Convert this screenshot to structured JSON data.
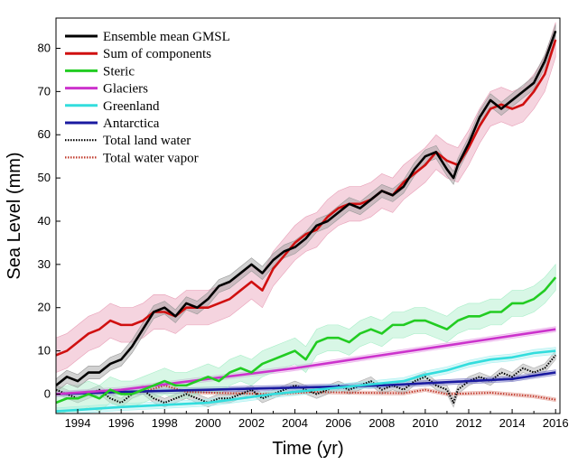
{
  "chart_data": {
    "type": "line",
    "title": "",
    "xlabel": "Time (yr)",
    "ylabel": "Sea Level (mm)",
    "xlim": [
      1993,
      2016.2
    ],
    "ylim": [
      -4.5,
      87
    ],
    "xticks": [
      1994,
      1996,
      1998,
      2000,
      2002,
      2004,
      2006,
      2008,
      2010,
      2012,
      2014,
      2016
    ],
    "yticks": [
      0,
      10,
      20,
      30,
      40,
      50,
      60,
      70,
      80
    ],
    "grid": false,
    "legend_position": "top-left",
    "series": [
      {
        "name": "Ensemble mean GMSL",
        "color": "#000000",
        "style": "solid",
        "band_color": "#999999",
        "band_halfwidth": 1.5,
        "x": [
          1993.0,
          1993.5,
          1994.0,
          1994.5,
          1995.0,
          1995.5,
          1996.0,
          1996.5,
          1997.0,
          1997.5,
          1998.0,
          1998.5,
          1999.0,
          1999.5,
          2000.0,
          2000.5,
          2001.0,
          2001.5,
          2002.0,
          2002.5,
          2003.0,
          2003.5,
          2004.0,
          2004.5,
          2005.0,
          2005.5,
          2006.0,
          2006.5,
          2007.0,
          2007.5,
          2008.0,
          2008.5,
          2009.0,
          2009.5,
          2010.0,
          2010.5,
          2011.0,
          2011.3,
          2011.5,
          2012.0,
          2012.5,
          2013.0,
          2013.5,
          2014.0,
          2014.5,
          2015.0,
          2015.5,
          2016.0
        ],
        "y": [
          2,
          4,
          3,
          5,
          5,
          7,
          8,
          11,
          15,
          19,
          20,
          18,
          21,
          20,
          22,
          25,
          26,
          28,
          30,
          28,
          31,
          33,
          34,
          36,
          39,
          40,
          42,
          44,
          43,
          45,
          47,
          46,
          48,
          52,
          55,
          56,
          52,
          50,
          53,
          58,
          64,
          68,
          66,
          68,
          70,
          72,
          77,
          84
        ]
      },
      {
        "name": "Sum of components",
        "color": "#d01010",
        "style": "solid",
        "band_color": "#e8a0b8",
        "band_halfwidth": 4,
        "x": [
          1993.0,
          1993.5,
          1994.0,
          1994.5,
          1995.0,
          1995.5,
          1996.0,
          1996.5,
          1997.0,
          1997.5,
          1998.0,
          1998.5,
          1999.0,
          1999.5,
          2000.0,
          2000.5,
          2001.0,
          2001.5,
          2002.0,
          2002.5,
          2003.0,
          2003.5,
          2004.0,
          2004.5,
          2005.0,
          2005.5,
          2006.0,
          2006.5,
          2007.0,
          2007.5,
          2008.0,
          2008.5,
          2009.0,
          2009.5,
          2010.0,
          2010.5,
          2011.0,
          2011.5,
          2012.0,
          2012.5,
          2013.0,
          2013.5,
          2014.0,
          2014.5,
          2015.0,
          2015.5,
          2016.0
        ],
        "y": [
          9,
          10,
          12,
          14,
          15,
          17,
          16,
          16,
          17,
          19,
          19,
          18,
          20,
          20,
          20,
          21,
          22,
          24,
          26,
          24,
          29,
          32,
          35,
          37,
          38,
          41,
          43,
          44,
          44,
          45,
          47,
          46,
          49,
          51,
          53,
          56,
          54,
          53,
          57,
          62,
          66,
          67,
          66,
          67,
          70,
          74,
          82
        ]
      },
      {
        "name": "Steric",
        "color": "#22cc22",
        "style": "solid",
        "band_color": "#a8eec8",
        "band_halfwidth": 3,
        "x": [
          1993.0,
          1993.5,
          1994.0,
          1994.5,
          1995.0,
          1995.5,
          1996.0,
          1996.5,
          1997.0,
          1997.5,
          1998.0,
          1998.5,
          1999.0,
          1999.5,
          2000.0,
          2000.5,
          2001.0,
          2001.5,
          2002.0,
          2002.5,
          2003.0,
          2003.5,
          2004.0,
          2004.5,
          2005.0,
          2005.5,
          2006.0,
          2006.5,
          2007.0,
          2007.5,
          2008.0,
          2008.5,
          2009.0,
          2009.5,
          2010.0,
          2010.5,
          2011.0,
          2011.5,
          2012.0,
          2012.5,
          2013.0,
          2013.5,
          2014.0,
          2014.5,
          2015.0,
          2015.5,
          2016.0
        ],
        "y": [
          -2,
          -1,
          -1,
          0,
          -1,
          1,
          0,
          0,
          1,
          2,
          3,
          2,
          2,
          3,
          4,
          3,
          5,
          6,
          5,
          7,
          8,
          9,
          10,
          8,
          12,
          13,
          13,
          12,
          14,
          15,
          14,
          16,
          16,
          17,
          17,
          16,
          15,
          17,
          18,
          18,
          19,
          19,
          21,
          21,
          22,
          24,
          27
        ]
      },
      {
        "name": "Glaciers",
        "color": "#cc33cc",
        "style": "solid",
        "band_color": "#e8a8e8",
        "band_halfwidth": 0.6,
        "x": [
          1993.0,
          1996.0,
          2000.0,
          2004.0,
          2008.0,
          2012.0,
          2016.0
        ],
        "y": [
          0,
          1,
          3.5,
          6,
          9,
          12,
          15
        ]
      },
      {
        "name": "Greenland",
        "color": "#33dddd",
        "style": "solid",
        "band_color": "#a8f0f0",
        "band_halfwidth": 0.8,
        "x": [
          1993.0,
          1996.0,
          2000.0,
          2003.0,
          2005.0,
          2007.0,
          2009.0,
          2010.0,
          2011.0,
          2012.0,
          2013.0,
          2014.0,
          2015.0,
          2016.0
        ],
        "y": [
          -4,
          -3,
          -2,
          0,
          1,
          2,
          3,
          4.5,
          5.5,
          7,
          8,
          8.5,
          9.5,
          10
        ]
      },
      {
        "name": "Antarctica",
        "color": "#1a1aa0",
        "style": "solid",
        "band_color": "#8888cc",
        "band_halfwidth": 0.6,
        "x": [
          1993.0,
          1996.0,
          2000.0,
          2004.0,
          2008.0,
          2012.0,
          2014.0,
          2016.0
        ],
        "y": [
          0,
          0.5,
          1,
          1.5,
          2,
          3,
          3.5,
          5
        ]
      },
      {
        "name": "Total land water",
        "color": "#000000",
        "style": "dotted",
        "band_color": "#aaaaaa",
        "band_halfwidth": 1,
        "x": [
          1993.0,
          1993.5,
          1994.0,
          1994.5,
          1995.0,
          1995.5,
          1996.0,
          1996.5,
          1997.0,
          1997.5,
          1998.0,
          1998.5,
          1999.0,
          1999.5,
          2000.0,
          2000.5,
          2001.0,
          2001.5,
          2002.0,
          2002.5,
          2003.0,
          2003.5,
          2004.0,
          2004.5,
          2005.0,
          2005.5,
          2006.0,
          2006.5,
          2007.0,
          2007.5,
          2008.0,
          2008.5,
          2009.0,
          2009.5,
          2010.0,
          2010.5,
          2011.0,
          2011.3,
          2011.5,
          2012.0,
          2012.5,
          2013.0,
          2013.5,
          2014.0,
          2014.5,
          2015.0,
          2015.5,
          2016.0
        ],
        "y": [
          1,
          0,
          -1,
          0,
          1,
          -1,
          -2,
          0,
          1,
          -1,
          -2,
          -1,
          0,
          -1,
          -2,
          -1,
          -1,
          0,
          1,
          -1,
          0,
          1,
          2,
          1,
          0,
          1,
          2,
          1,
          2,
          3,
          1,
          2,
          1,
          3,
          4,
          2,
          1,
          -2,
          1,
          3,
          4,
          3,
          5,
          4,
          6,
          5,
          6,
          9
        ]
      },
      {
        "name": "Total water vapor",
        "color": "#c0392b",
        "style": "dotted",
        "band_color": "#e8b0a8",
        "band_halfwidth": 0.4,
        "x": [
          1993.0,
          1995.0,
          1997.0,
          1998.0,
          1999.0,
          2001.0,
          2003.0,
          2005.0,
          2007.0,
          2009.0,
          2010.0,
          2011.0,
          2013.0,
          2015.0,
          2016.0
        ],
        "y": [
          0,
          0.3,
          0.5,
          2,
          0.5,
          0.2,
          0,
          0.5,
          0.3,
          0.2,
          1,
          0,
          0.3,
          -0.5,
          -1.3
        ]
      }
    ]
  }
}
